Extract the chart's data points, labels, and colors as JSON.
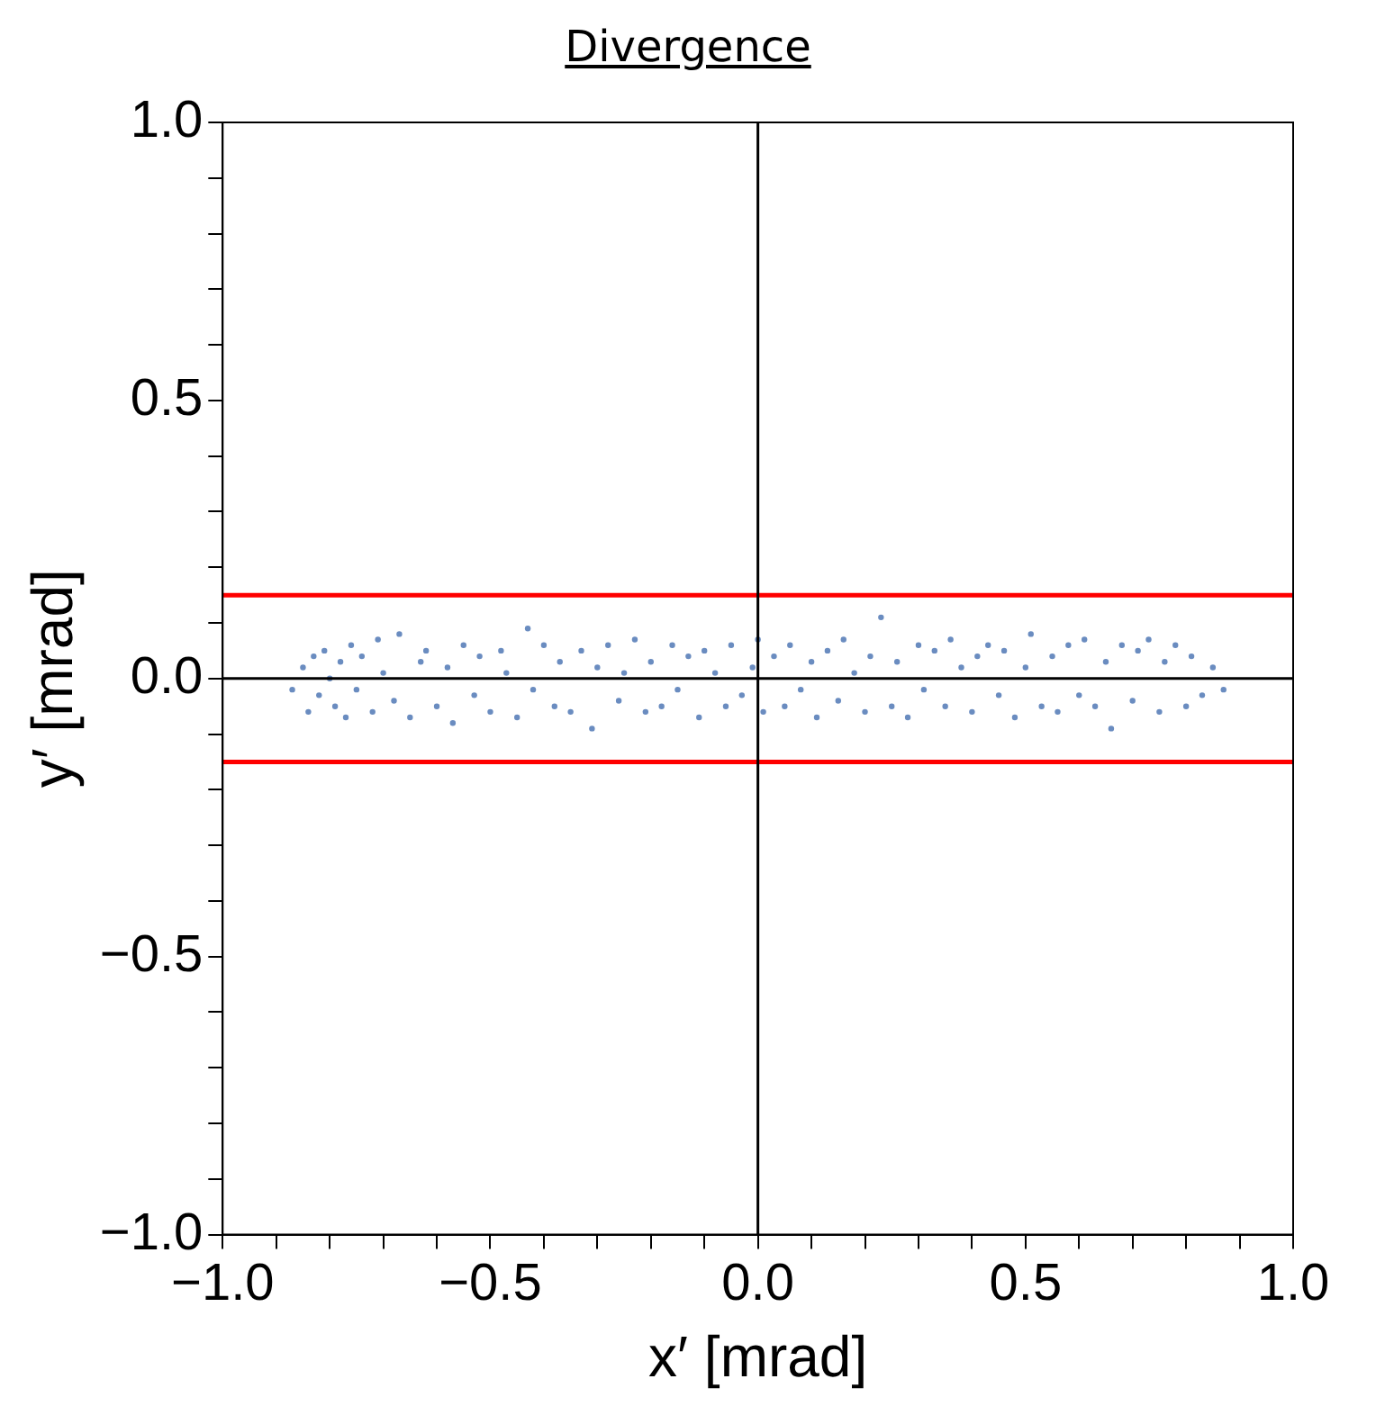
{
  "chart_data": {
    "type": "scatter",
    "title": "Divergence",
    "xlabel": "x′ [mrad]",
    "ylabel": "y′ [mrad]",
    "xlim": [
      -1,
      1
    ],
    "ylim": [
      -1,
      1
    ],
    "xticks": [
      {
        "value": -1,
        "label": "−1.0"
      },
      {
        "value": -0.9,
        "label": null
      },
      {
        "value": -0.8,
        "label": null
      },
      {
        "value": -0.7,
        "label": null
      },
      {
        "value": -0.6,
        "label": null
      },
      {
        "value": -0.5,
        "label": "−0.5"
      },
      {
        "value": -0.4,
        "label": null
      },
      {
        "value": -0.3,
        "label": null
      },
      {
        "value": -0.2,
        "label": null
      },
      {
        "value": -0.1,
        "label": null
      },
      {
        "value": 0,
        "label": "0.0"
      },
      {
        "value": 0.1,
        "label": null
      },
      {
        "value": 0.2,
        "label": null
      },
      {
        "value": 0.3,
        "label": null
      },
      {
        "value": 0.4,
        "label": null
      },
      {
        "value": 0.5,
        "label": "0.5"
      },
      {
        "value": 0.6,
        "label": null
      },
      {
        "value": 0.7,
        "label": null
      },
      {
        "value": 0.8,
        "label": null
      },
      {
        "value": 0.9,
        "label": null
      },
      {
        "value": 1,
        "label": "1.0"
      }
    ],
    "yticks": [
      {
        "value": -1,
        "label": "−1.0"
      },
      {
        "value": -0.9,
        "label": null
      },
      {
        "value": -0.8,
        "label": null
      },
      {
        "value": -0.7,
        "label": null
      },
      {
        "value": -0.6,
        "label": null
      },
      {
        "value": -0.5,
        "label": "−0.5"
      },
      {
        "value": -0.4,
        "label": null
      },
      {
        "value": -0.3,
        "label": null
      },
      {
        "value": -0.2,
        "label": null
      },
      {
        "value": -0.1,
        "label": null
      },
      {
        "value": 0,
        "label": "0.0"
      },
      {
        "value": 0.1,
        "label": null
      },
      {
        "value": 0.2,
        "label": null
      },
      {
        "value": 0.3,
        "label": null
      },
      {
        "value": 0.4,
        "label": null
      },
      {
        "value": 0.5,
        "label": "0.5"
      },
      {
        "value": 0.6,
        "label": null
      },
      {
        "value": 0.7,
        "label": null
      },
      {
        "value": 0.8,
        "label": null
      },
      {
        "value": 0.9,
        "label": null
      },
      {
        "value": 1,
        "label": "1.0"
      }
    ],
    "ref_lines": [
      {
        "axis": "y",
        "value": 0.15,
        "color": "#ff0000"
      },
      {
        "axis": "y",
        "value": -0.15,
        "color": "#ff0000"
      },
      {
        "axis": "x",
        "value": 0,
        "color": "#000000"
      },
      {
        "axis": "y",
        "value": 0,
        "color": "#000000"
      }
    ],
    "marker": "circle",
    "grid": false,
    "legend": false,
    "series": [
      {
        "color": "#6a8cc0",
        "x": [
          -0.87,
          -0.85,
          -0.84,
          -0.83,
          -0.82,
          -0.81,
          -0.8,
          -0.79,
          -0.78,
          -0.77,
          -0.76,
          -0.75,
          -0.74,
          -0.72,
          -0.71,
          -0.7,
          -0.68,
          -0.67,
          -0.65,
          -0.63,
          -0.62,
          -0.6,
          -0.58,
          -0.57,
          -0.55,
          -0.53,
          -0.52,
          -0.5,
          -0.48,
          -0.47,
          -0.45,
          -0.43,
          -0.42,
          -0.4,
          -0.38,
          -0.37,
          -0.35,
          -0.33,
          -0.31,
          -0.3,
          -0.28,
          -0.26,
          -0.25,
          -0.23,
          -0.21,
          -0.2,
          -0.18,
          -0.16,
          -0.15,
          -0.13,
          -0.11,
          -0.1,
          -0.08,
          -0.06,
          -0.05,
          -0.03,
          -0.01,
          0,
          0.01,
          0.03,
          0.05,
          0.06,
          0.08,
          0.1,
          0.11,
          0.13,
          0.15,
          0.16,
          0.18,
          0.2,
          0.21,
          0.23,
          0.25,
          0.26,
          0.28,
          0.3,
          0.31,
          0.33,
          0.35,
          0.36,
          0.38,
          0.4,
          0.41,
          0.43,
          0.45,
          0.46,
          0.48,
          0.5,
          0.51,
          0.53,
          0.55,
          0.56,
          0.58,
          0.6,
          0.61,
          0.63,
          0.65,
          0.66,
          0.68,
          0.7,
          0.71,
          0.73,
          0.75,
          0.76,
          0.78,
          0.8,
          0.81,
          0.83,
          0.85,
          0.87
        ],
        "values": [
          -0.02,
          0.02,
          -0.06,
          0.04,
          -0.03,
          0.05,
          0,
          -0.05,
          0.03,
          -0.07,
          0.06,
          -0.02,
          0.04,
          -0.06,
          0.07,
          0.01,
          -0.04,
          0.08,
          -0.07,
          0.03,
          0.05,
          -0.05,
          0.02,
          -0.08,
          0.06,
          -0.03,
          0.04,
          -0.06,
          0.05,
          0.01,
          -0.07,
          0.09,
          -0.02,
          0.06,
          -0.05,
          0.03,
          -0.06,
          0.05,
          -0.09,
          0.02,
          0.06,
          -0.04,
          0.01,
          0.07,
          -0.06,
          0.03,
          -0.05,
          0.06,
          -0.02,
          0.04,
          -0.07,
          0.05,
          0.01,
          -0.05,
          0.06,
          -0.03,
          0.02,
          0.07,
          -0.06,
          0.04,
          -0.05,
          0.06,
          -0.02,
          0.03,
          -0.07,
          0.05,
          -0.04,
          0.07,
          0.01,
          -0.06,
          0.04,
          0.11,
          -0.05,
          0.03,
          -0.07,
          0.06,
          -0.02,
          0.05,
          -0.05,
          0.07,
          0.02,
          -0.06,
          0.04,
          0.06,
          -0.03,
          0.05,
          -0.07,
          0.02,
          0.08,
          -0.05,
          0.04,
          -0.06,
          0.06,
          -0.03,
          0.07,
          -0.05,
          0.03,
          -0.09,
          0.06,
          -0.04,
          0.05,
          0.07,
          -0.06,
          0.03,
          0.06,
          -0.05,
          0.04,
          -0.03,
          0.02,
          -0.02
        ]
      }
    ]
  }
}
